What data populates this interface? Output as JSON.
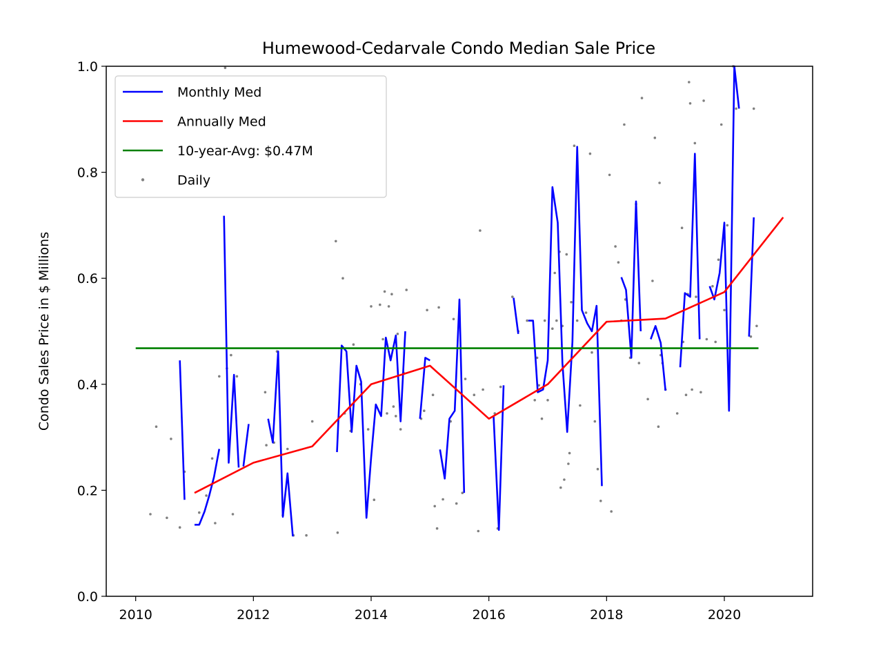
{
  "chart_data": {
    "type": "line",
    "title": "Humewood-Cedarvale Condo Median Sale Price",
    "xlabel": "",
    "ylabel": "Condo Sales Price in $ Millions",
    "xlim": [
      2009.5,
      2021.5
    ],
    "ylim": [
      0.0,
      1.0
    ],
    "xticks": [
      2010,
      2012,
      2014,
      2016,
      2018,
      2020
    ],
    "xtick_labels": [
      "2010",
      "2012",
      "2014",
      "2016",
      "2018",
      "2020"
    ],
    "yticks": [
      0.0,
      0.2,
      0.4,
      0.6,
      0.8,
      1.0
    ],
    "ytick_labels": [
      "0.0",
      "0.2",
      "0.4",
      "0.6",
      "0.8",
      "1.0"
    ],
    "grid": false,
    "legend_position": "top-left",
    "colors": {
      "monthly": "#0000ff",
      "annual": "#ff0000",
      "average": "#008000",
      "daily": "#808080"
    },
    "legend": [
      {
        "label": "Monthly Med",
        "kind": "line",
        "color": "#0000ff"
      },
      {
        "label": "Annually Med",
        "kind": "line",
        "color": "#ff0000"
      },
      {
        "label": "10-year-Avg: $0.47M",
        "kind": "line",
        "color": "#008000"
      },
      {
        "label": "Daily",
        "kind": "marker",
        "color": "#808080"
      }
    ],
    "series": [
      {
        "name": "Monthly Med",
        "type": "line",
        "color": "#0000ff",
        "segments": [
          [
            [
              2010.75,
              0.445
            ],
            [
              2010.83,
              0.182
            ]
          ],
          [
            [
              2011.0,
              0.135
            ],
            [
              2011.08,
              0.135
            ],
            [
              2011.17,
              0.16
            ],
            [
              2011.25,
              0.19
            ],
            [
              2011.33,
              0.225
            ],
            [
              2011.42,
              0.278
            ]
          ],
          [
            [
              2011.5,
              0.718
            ],
            [
              2011.58,
              0.252
            ],
            [
              2011.67,
              0.418
            ],
            [
              2011.75,
              0.243
            ]
          ],
          [
            [
              2011.83,
              0.245
            ],
            [
              2011.92,
              0.325
            ]
          ],
          [
            [
              2012.25,
              0.335
            ],
            [
              2012.33,
              0.29
            ],
            [
              2012.42,
              0.462
            ],
            [
              2012.5,
              0.15
            ],
            [
              2012.58,
              0.232
            ],
            [
              2012.67,
              0.113
            ]
          ],
          [
            [
              2013.42,
              0.272
            ],
            [
              2013.5,
              0.473
            ],
            [
              2013.58,
              0.462
            ],
            [
              2013.67,
              0.31
            ],
            [
              2013.75,
              0.435
            ],
            [
              2013.83,
              0.405
            ],
            [
              2013.92,
              0.148
            ],
            [
              2014.0,
              0.262
            ],
            [
              2014.08,
              0.362
            ],
            [
              2014.17,
              0.34
            ],
            [
              2014.25,
              0.488
            ],
            [
              2014.33,
              0.445
            ],
            [
              2014.42,
              0.492
            ],
            [
              2014.5,
              0.33
            ],
            [
              2014.58,
              0.5
            ]
          ],
          [
            [
              2014.83,
              0.335
            ],
            [
              2014.92,
              0.45
            ],
            [
              2015.0,
              0.445
            ]
          ],
          [
            [
              2015.17,
              0.277
            ],
            [
              2015.25,
              0.222
            ],
            [
              2015.33,
              0.335
            ],
            [
              2015.42,
              0.35
            ],
            [
              2015.5,
              0.56
            ],
            [
              2015.58,
              0.195
            ]
          ],
          [
            [
              2016.08,
              0.34
            ],
            [
              2016.17,
              0.125
            ],
            [
              2016.25,
              0.398
            ]
          ],
          [
            [
              2016.42,
              0.563
            ],
            [
              2016.5,
              0.495
            ]
          ],
          [
            [
              2016.67,
              0.52
            ],
            [
              2016.75,
              0.52
            ],
            [
              2016.83,
              0.385
            ],
            [
              2016.92,
              0.39
            ],
            [
              2017.0,
              0.445
            ],
            [
              2017.08,
              0.772
            ],
            [
              2017.17,
              0.705
            ],
            [
              2017.25,
              0.44
            ],
            [
              2017.33,
              0.31
            ],
            [
              2017.42,
              0.48
            ],
            [
              2017.5,
              0.848
            ],
            [
              2017.58,
              0.54
            ],
            [
              2017.67,
              0.515
            ],
            [
              2017.75,
              0.5
            ],
            [
              2017.83,
              0.548
            ],
            [
              2017.92,
              0.208
            ]
          ],
          [
            [
              2018.25,
              0.602
            ],
            [
              2018.33,
              0.578
            ],
            [
              2018.42,
              0.45
            ],
            [
              2018.5,
              0.745
            ],
            [
              2018.58,
              0.5
            ]
          ],
          [
            [
              2018.75,
              0.485
            ],
            [
              2018.83,
              0.51
            ],
            [
              2018.92,
              0.478
            ],
            [
              2019.0,
              0.388
            ]
          ],
          [
            [
              2019.25,
              0.432
            ],
            [
              2019.33,
              0.572
            ],
            [
              2019.42,
              0.565
            ],
            [
              2019.5,
              0.835
            ],
            [
              2019.58,
              0.485
            ]
          ],
          [
            [
              2019.75,
              0.585
            ],
            [
              2019.83,
              0.56
            ],
            [
              2019.92,
              0.61
            ],
            [
              2020.0,
              0.705
            ],
            [
              2020.08,
              0.35
            ],
            [
              2020.17,
              1.0
            ],
            [
              2020.25,
              0.92
            ]
          ],
          [
            [
              2020.42,
              0.49
            ],
            [
              2020.5,
              0.715
            ]
          ]
        ]
      },
      {
        "name": "Annually Med",
        "type": "line",
        "color": "#ff0000",
        "points": [
          [
            2011,
            0.195
          ],
          [
            2012,
            0.252
          ],
          [
            2013,
            0.283
          ],
          [
            2014,
            0.4
          ],
          [
            2015,
            0.435
          ],
          [
            2016,
            0.335
          ],
          [
            2017,
            0.4
          ],
          [
            2018,
            0.518
          ],
          [
            2019,
            0.524
          ],
          [
            2020,
            0.574
          ],
          [
            2021,
            0.715
          ]
        ]
      },
      {
        "name": "10-year-Avg: $0.47M",
        "type": "line",
        "color": "#008000",
        "points": [
          [
            2010.0,
            0.468
          ],
          [
            2020.58,
            0.468
          ]
        ]
      },
      {
        "name": "Daily",
        "type": "scatter",
        "color": "#808080",
        "points": [
          [
            2010.25,
            0.155
          ],
          [
            2010.35,
            0.32
          ],
          [
            2010.53,
            0.148
          ],
          [
            2010.6,
            0.297
          ],
          [
            2010.75,
            0.13
          ],
          [
            2010.83,
            0.235
          ],
          [
            2011.08,
            0.158
          ],
          [
            2011.2,
            0.19
          ],
          [
            2011.3,
            0.26
          ],
          [
            2011.35,
            0.138
          ],
          [
            2011.42,
            0.415
          ],
          [
            2011.52,
            0.997
          ],
          [
            2011.55,
            0.43
          ],
          [
            2011.62,
            0.455
          ],
          [
            2011.65,
            0.155
          ],
          [
            2011.72,
            0.415
          ],
          [
            2012.2,
            0.385
          ],
          [
            2012.22,
            0.285
          ],
          [
            2012.35,
            0.29
          ],
          [
            2012.4,
            0.462
          ],
          [
            2012.5,
            0.153
          ],
          [
            2012.58,
            0.278
          ],
          [
            2012.68,
            0.115
          ],
          [
            2012.9,
            0.115
          ],
          [
            2013.0,
            0.33
          ],
          [
            2013.4,
            0.67
          ],
          [
            2013.43,
            0.12
          ],
          [
            2013.52,
            0.6
          ],
          [
            2013.55,
            0.345
          ],
          [
            2013.65,
            0.312
          ],
          [
            2013.7,
            0.475
          ],
          [
            2013.82,
            0.4
          ],
          [
            2013.95,
            0.315
          ],
          [
            2014.0,
            0.547
          ],
          [
            2014.05,
            0.182
          ],
          [
            2014.15,
            0.55
          ],
          [
            2014.2,
            0.485
          ],
          [
            2014.23,
            0.575
          ],
          [
            2014.27,
            0.345
          ],
          [
            2014.3,
            0.547
          ],
          [
            2014.35,
            0.57
          ],
          [
            2014.38,
            0.358
          ],
          [
            2014.42,
            0.34
          ],
          [
            2014.45,
            0.495
          ],
          [
            2014.5,
            0.315
          ],
          [
            2014.55,
            0.422
          ],
          [
            2014.6,
            0.578
          ],
          [
            2014.85,
            0.335
          ],
          [
            2014.9,
            0.35
          ],
          [
            2014.95,
            0.54
          ],
          [
            2015.05,
            0.38
          ],
          [
            2015.08,
            0.17
          ],
          [
            2015.12,
            0.128
          ],
          [
            2015.15,
            0.545
          ],
          [
            2015.22,
            0.183
          ],
          [
            2015.35,
            0.33
          ],
          [
            2015.4,
            0.523
          ],
          [
            2015.45,
            0.175
          ],
          [
            2015.55,
            0.195
          ],
          [
            2015.6,
            0.41
          ],
          [
            2015.75,
            0.38
          ],
          [
            2015.82,
            0.123
          ],
          [
            2015.85,
            0.69
          ],
          [
            2015.9,
            0.39
          ],
          [
            2016.1,
            0.345
          ],
          [
            2016.15,
            0.128
          ],
          [
            2016.2,
            0.395
          ],
          [
            2016.4,
            0.565
          ],
          [
            2016.5,
            0.5
          ],
          [
            2016.65,
            0.52
          ],
          [
            2016.78,
            0.37
          ],
          [
            2016.82,
            0.45
          ],
          [
            2016.85,
            0.398
          ],
          [
            2016.9,
            0.335
          ],
          [
            2016.95,
            0.52
          ],
          [
            2017.0,
            0.37
          ],
          [
            2017.08,
            0.505
          ],
          [
            2017.12,
            0.61
          ],
          [
            2017.15,
            0.52
          ],
          [
            2017.2,
            0.65
          ],
          [
            2017.22,
            0.205
          ],
          [
            2017.25,
            0.51
          ],
          [
            2017.28,
            0.22
          ],
          [
            2017.32,
            0.645
          ],
          [
            2017.35,
            0.25
          ],
          [
            2017.37,
            0.27
          ],
          [
            2017.4,
            0.555
          ],
          [
            2017.45,
            0.85
          ],
          [
            2017.5,
            0.52
          ],
          [
            2017.55,
            0.36
          ],
          [
            2017.65,
            0.535
          ],
          [
            2017.72,
            0.835
          ],
          [
            2017.75,
            0.46
          ],
          [
            2017.8,
            0.33
          ],
          [
            2017.85,
            0.24
          ],
          [
            2017.9,
            0.18
          ],
          [
            2018.05,
            0.795
          ],
          [
            2018.08,
            0.16
          ],
          [
            2018.15,
            0.66
          ],
          [
            2018.2,
            0.63
          ],
          [
            2018.25,
            0.52
          ],
          [
            2018.3,
            0.89
          ],
          [
            2018.32,
            0.56
          ],
          [
            2018.4,
            0.45
          ],
          [
            2018.5,
            0.74
          ],
          [
            2018.55,
            0.44
          ],
          [
            2018.6,
            0.94
          ],
          [
            2018.7,
            0.372
          ],
          [
            2018.78,
            0.595
          ],
          [
            2018.82,
            0.865
          ],
          [
            2018.88,
            0.32
          ],
          [
            2018.9,
            0.78
          ],
          [
            2018.92,
            0.455
          ],
          [
            2018.95,
            0.44
          ],
          [
            2019.0,
            0.39
          ],
          [
            2019.2,
            0.345
          ],
          [
            2019.28,
            0.695
          ],
          [
            2019.3,
            0.48
          ],
          [
            2019.35,
            0.38
          ],
          [
            2019.38,
            0.57
          ],
          [
            2019.4,
            0.97
          ],
          [
            2019.42,
            0.93
          ],
          [
            2019.45,
            0.39
          ],
          [
            2019.5,
            0.855
          ],
          [
            2019.52,
            0.565
          ],
          [
            2019.6,
            0.385
          ],
          [
            2019.65,
            0.935
          ],
          [
            2019.7,
            0.485
          ],
          [
            2019.8,
            0.585
          ],
          [
            2019.85,
            0.48
          ],
          [
            2019.9,
            0.635
          ],
          [
            2019.95,
            0.89
          ],
          [
            2020.0,
            0.54
          ],
          [
            2020.05,
            0.7
          ],
          [
            2020.15,
            1.0
          ],
          [
            2020.2,
            0.92
          ],
          [
            2020.45,
            0.49
          ],
          [
            2020.5,
            0.92
          ],
          [
            2020.55,
            0.51
          ]
        ]
      }
    ]
  }
}
